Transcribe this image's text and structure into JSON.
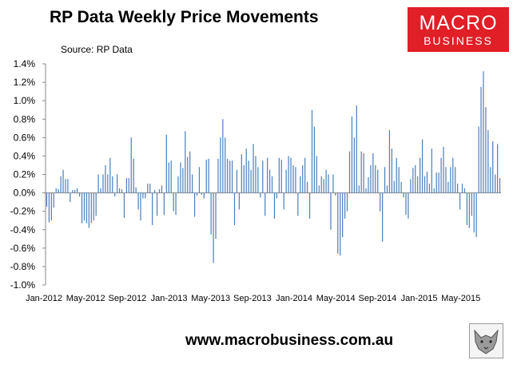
{
  "title": "RP Data Weekly Price Movements",
  "source": "Source: RP Data",
  "logo": {
    "line1": "MACRO",
    "line2": "BUSINESS"
  },
  "footer": "www.macrobusiness.com.au",
  "colors": {
    "bar": "#4f81bd",
    "logo_bg": "#e01f26"
  },
  "chart_data": {
    "type": "bar",
    "title": "RP Data Weekly Price Movements",
    "ylim": [
      -1.0,
      1.4
    ],
    "yticks": [
      -1.0,
      -0.8,
      -0.6,
      -0.4,
      -0.2,
      0.0,
      0.2,
      0.4,
      0.6,
      0.8,
      1.0,
      1.2,
      1.4
    ],
    "ytick_labels": [
      "-1.0%",
      "-0.8%",
      "-0.6%",
      "-0.4%",
      "-0.2%",
      "0.0%",
      "0.2%",
      "0.4%",
      "0.6%",
      "0.8%",
      "1.0%",
      "1.2%",
      "1.4%"
    ],
    "xtick_labels": [
      "Jan-2012",
      "May-2012",
      "Sep-2012",
      "Jan-2013",
      "May-2013",
      "Sep-2013",
      "Jan-2014",
      "May-2014",
      "Sep-2014",
      "Jan-2015",
      "May-2015"
    ],
    "grid": false,
    "unit": "%",
    "series": [
      {
        "values": [
          -0.15,
          -0.32,
          -0.3,
          -0.16,
          0.05,
          0.04,
          0.18,
          0.25,
          0.15,
          0.15,
          -0.1,
          0.03,
          0.03,
          0.05,
          -0.04,
          -0.33,
          -0.3,
          -0.33,
          -0.38,
          -0.33,
          -0.3,
          -0.25,
          0.2,
          0.05,
          0.2,
          0.3,
          0.2,
          0.38,
          0.18,
          -0.04,
          0.2,
          0.05,
          0.04,
          -0.27,
          0.16,
          0.16,
          0.6,
          0.37,
          0.06,
          -0.18,
          -0.3,
          -0.06,
          -0.06,
          0.1,
          0.1,
          -0.35,
          0.03,
          -0.25,
          0.04,
          0.08,
          -0.24,
          0.63,
          0.33,
          0.35,
          -0.2,
          -0.24,
          0.18,
          0.33,
          0.27,
          0.67,
          0.39,
          0.45,
          0.2,
          -0.26,
          -0.03,
          0.28,
          -0.02,
          -0.06,
          0.36,
          0.37,
          -0.45,
          -0.76,
          -0.5,
          0.37,
          0.6,
          0.8,
          0.6,
          0.37,
          0.35,
          0.35,
          -0.35,
          0.25,
          -0.18,
          0.42,
          0.3,
          0.48,
          0.35,
          0.25,
          0.53,
          0.4,
          0.28,
          -0.05,
          0.35,
          -0.25,
          0.38,
          0.25,
          0.18,
          -0.28,
          -0.06,
          0.38,
          0.36,
          -0.18,
          0.25,
          0.4,
          0.38,
          0.3,
          0.28,
          -0.25,
          0.18,
          0.3,
          0.38,
          0.12,
          -0.28,
          0.9,
          0.72,
          0.4,
          0.08,
          0.18,
          0.15,
          0.25,
          0.2,
          -0.4,
          0.2,
          -0.03,
          -0.66,
          -0.68,
          -0.48,
          -0.28,
          -0.2,
          0.45,
          0.83,
          0.6,
          0.95,
          0.08,
          0.45,
          0.43,
          0.05,
          0.17,
          0.3,
          0.43,
          0.3,
          0.25,
          -0.2,
          -0.53,
          0.28,
          0.08,
          0.68,
          0.48,
          0.13,
          0.38,
          0.28,
          0.12,
          -0.05,
          -0.24,
          -0.28,
          0.15,
          0.27,
          0.3,
          0.18,
          0.38,
          0.58,
          0.18,
          0.23,
          0.1,
          0.48,
          0.05,
          0.22,
          0.22,
          0.38,
          0.5,
          0.28,
          0.12,
          0.28,
          0.38,
          0.28,
          0.1,
          -0.18,
          0.1,
          0.05,
          -0.35,
          -0.38,
          -0.25,
          -0.43,
          -0.48,
          0.72,
          1.15,
          1.32,
          0.93,
          0.68,
          0.28,
          0.56,
          0.2,
          0.53,
          0.16
        ]
      }
    ]
  }
}
